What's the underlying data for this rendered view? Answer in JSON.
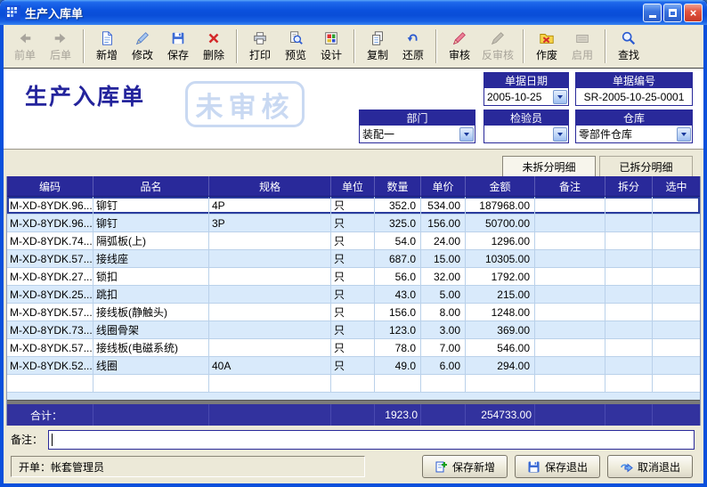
{
  "window": {
    "title": "生产入库单"
  },
  "toolbar": {
    "buttons": [
      {
        "label": "前单",
        "enabled": false
      },
      {
        "label": "后单",
        "enabled": false
      },
      {
        "label": "新增",
        "enabled": true
      },
      {
        "label": "修改",
        "enabled": true
      },
      {
        "label": "保存",
        "enabled": true
      },
      {
        "label": "删除",
        "enabled": true
      },
      {
        "label": "打印",
        "enabled": true
      },
      {
        "label": "预览",
        "enabled": true
      },
      {
        "label": "设计",
        "enabled": true
      },
      {
        "label": "复制",
        "enabled": true
      },
      {
        "label": "还原",
        "enabled": true
      },
      {
        "label": "审核",
        "enabled": true
      },
      {
        "label": "反审核",
        "enabled": false
      },
      {
        "label": "作废",
        "enabled": true
      },
      {
        "label": "启用",
        "enabled": false
      },
      {
        "label": "查找",
        "enabled": true
      }
    ]
  },
  "form": {
    "title": "生产入库单",
    "watermark": "未审核",
    "date": {
      "label": "单据日期",
      "value": "2005-10-25"
    },
    "doc_no": {
      "label": "单据编号",
      "value": "SR-2005-10-25-0001"
    },
    "department": {
      "label": "部门",
      "value": "装配一"
    },
    "inspector": {
      "label": "检验员",
      "value": ""
    },
    "warehouse": {
      "label": "仓库",
      "value": "零部件仓库"
    }
  },
  "tabs": [
    {
      "label": "未拆分明细",
      "active": true
    },
    {
      "label": "已拆分明细",
      "active": false
    }
  ],
  "table": {
    "columns": [
      "编码",
      "品名",
      "规格",
      "单位",
      "数量",
      "单价",
      "金额",
      "备注",
      "拆分",
      "选中"
    ],
    "rows": [
      [
        "M-XD-8YDK.96...",
        "铆钉",
        "4P",
        "只",
        "352.0",
        "534.00",
        "187968.00",
        "",
        "",
        ""
      ],
      [
        "M-XD-8YDK.96...",
        "铆钉",
        "3P",
        "只",
        "325.0",
        "156.00",
        "50700.00",
        "",
        "",
        ""
      ],
      [
        "M-XD-8YDK.74...",
        "隔弧板(上)",
        "",
        "只",
        "54.0",
        "24.00",
        "1296.00",
        "",
        "",
        ""
      ],
      [
        "M-XD-8YDK.57...",
        "接线座",
        "",
        "只",
        "687.0",
        "15.00",
        "10305.00",
        "",
        "",
        ""
      ],
      [
        "M-XD-8YDK.27...",
        "锁扣",
        "",
        "只",
        "56.0",
        "32.00",
        "1792.00",
        "",
        "",
        ""
      ],
      [
        "M-XD-8YDK.25...",
        "跳扣",
        "",
        "只",
        "43.0",
        "5.00",
        "215.00",
        "",
        "",
        ""
      ],
      [
        "M-XD-8YDK.57...",
        "接线板(静触头)",
        "",
        "只",
        "156.0",
        "8.00",
        "1248.00",
        "",
        "",
        ""
      ],
      [
        "M-XD-8YDK.73...",
        "线圈骨架",
        "",
        "只",
        "123.0",
        "3.00",
        "369.00",
        "",
        "",
        ""
      ],
      [
        "M-XD-8YDK.57...",
        "接线板(电磁系统)",
        "",
        "只",
        "78.0",
        "7.00",
        "546.00",
        "",
        "",
        ""
      ],
      [
        "M-XD-8YDK.52...",
        "线圈",
        "40A",
        "只",
        "49.0",
        "6.00",
        "294.00",
        "",
        "",
        ""
      ]
    ],
    "total": {
      "label": "合计：",
      "qty": "1923.0",
      "amount": "254733.00"
    }
  },
  "remark": {
    "label": "备注：",
    "value": ""
  },
  "footer": {
    "creator": "开单：帐套管理员",
    "buttons": [
      {
        "label": "保存新增"
      },
      {
        "label": "保存退出"
      },
      {
        "label": "取消退出"
      }
    ]
  },
  "colors": {
    "accent_navy": "#29299a",
    "row_alt": "#d9eafb",
    "chrome": "#ece9d8",
    "titlebar_blue": "#0a4fd8"
  }
}
